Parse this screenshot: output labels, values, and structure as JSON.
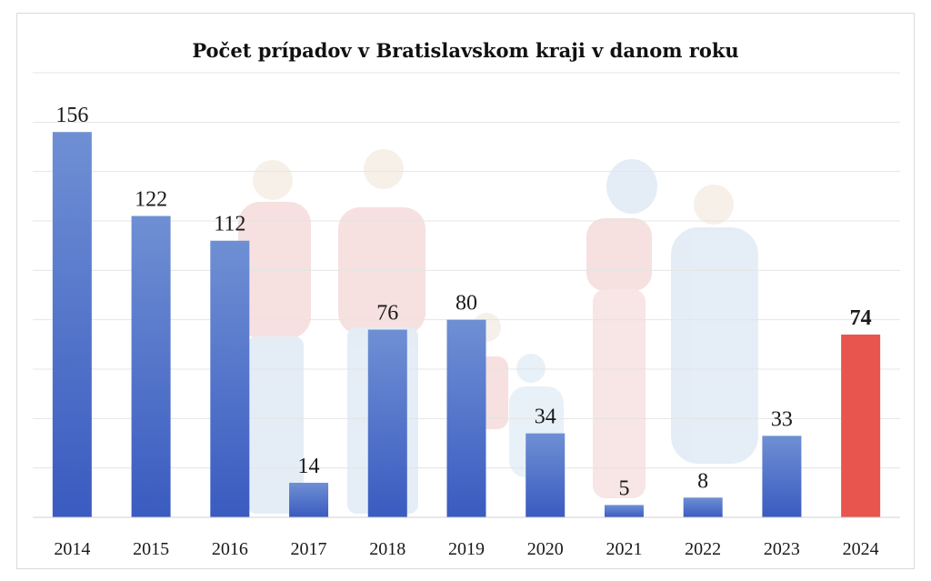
{
  "chart_data": {
    "type": "bar",
    "title": "Počet prípadov v Bratislavskom kraji v danom roku",
    "xlabel": "",
    "ylabel": "",
    "categories": [
      "2014",
      "2015",
      "2016",
      "2017",
      "2018",
      "2019",
      "2020",
      "2021",
      "2022",
      "2023",
      "2024"
    ],
    "values": [
      156,
      122,
      112,
      14,
      76,
      80,
      34,
      5,
      8,
      33,
      74
    ],
    "ylim": [
      0,
      180
    ],
    "grid": true,
    "highlight_category": "2024",
    "colors": {
      "bar": "#4466c4",
      "bar_light": "#6f8fd4",
      "highlight": "#e8554e",
      "gridline": "#e4e4e4",
      "background_figures": "#f3d7d7"
    }
  }
}
